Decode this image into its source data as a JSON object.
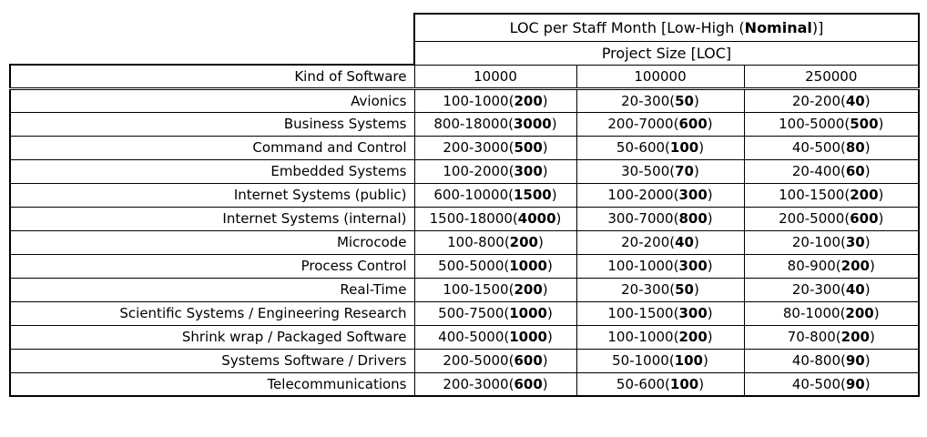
{
  "table": {
    "title": {
      "prefix": "LOC per Staff Month [Low-High (",
      "bold": "Nominal",
      "suffix": ")]"
    },
    "subtitle": "Project Size [LOC]",
    "row_header_label": "Kind of Software",
    "size_columns": [
      "10000",
      "100000",
      "250000"
    ],
    "cell_format": {
      "open": "(",
      "close": ")"
    },
    "rows": [
      {
        "kind": "Avionics",
        "cells": [
          {
            "range": "100-1000",
            "nominal": "200"
          },
          {
            "range": "20-300",
            "nominal": "50"
          },
          {
            "range": "20-200",
            "nominal": "40"
          }
        ]
      },
      {
        "kind": "Business Systems",
        "cells": [
          {
            "range": "800-18000",
            "nominal": "3000"
          },
          {
            "range": "200-7000",
            "nominal": "600"
          },
          {
            "range": "100-5000",
            "nominal": "500"
          }
        ]
      },
      {
        "kind": "Command and Control",
        "cells": [
          {
            "range": "200-3000",
            "nominal": "500"
          },
          {
            "range": "50-600",
            "nominal": "100"
          },
          {
            "range": "40-500",
            "nominal": "80"
          }
        ]
      },
      {
        "kind": "Embedded Systems",
        "cells": [
          {
            "range": "100-2000",
            "nominal": "300"
          },
          {
            "range": "30-500",
            "nominal": "70"
          },
          {
            "range": "20-400",
            "nominal": "60"
          }
        ]
      },
      {
        "kind": "Internet Systems (public)",
        "cells": [
          {
            "range": "600-10000",
            "nominal": "1500"
          },
          {
            "range": "100-2000",
            "nominal": "300"
          },
          {
            "range": "100-1500",
            "nominal": "200"
          }
        ]
      },
      {
        "kind": "Internet Systems (internal)",
        "cells": [
          {
            "range": "1500-18000",
            "nominal": "4000"
          },
          {
            "range": "300-7000",
            "nominal": "800"
          },
          {
            "range": "200-5000",
            "nominal": "600"
          }
        ]
      },
      {
        "kind": "Microcode",
        "cells": [
          {
            "range": "100-800",
            "nominal": "200"
          },
          {
            "range": "20-200",
            "nominal": "40"
          },
          {
            "range": "20-100",
            "nominal": "30"
          }
        ]
      },
      {
        "kind": "Process Control",
        "cells": [
          {
            "range": "500-5000",
            "nominal": "1000"
          },
          {
            "range": "100-1000",
            "nominal": "300"
          },
          {
            "range": "80-900",
            "nominal": "200"
          }
        ]
      },
      {
        "kind": "Real-Time",
        "cells": [
          {
            "range": "100-1500",
            "nominal": "200"
          },
          {
            "range": "20-300",
            "nominal": "50"
          },
          {
            "range": "20-300",
            "nominal": "40"
          }
        ]
      },
      {
        "kind": "Scientific Systems / Engineering Research",
        "cells": [
          {
            "range": "500-7500",
            "nominal": "1000"
          },
          {
            "range": "100-1500",
            "nominal": "300"
          },
          {
            "range": "80-1000",
            "nominal": "200"
          }
        ]
      },
      {
        "kind": "Shrink wrap / Packaged Software",
        "cells": [
          {
            "range": "400-5000",
            "nominal": "1000"
          },
          {
            "range": "100-1000",
            "nominal": "200"
          },
          {
            "range": "70-800",
            "nominal": "200"
          }
        ]
      },
      {
        "kind": "Systems Software / Drivers",
        "cells": [
          {
            "range": "200-5000",
            "nominal": "600"
          },
          {
            "range": "50-1000",
            "nominal": "100"
          },
          {
            "range": "40-800",
            "nominal": "90"
          }
        ]
      },
      {
        "kind": "Telecommunications",
        "cells": [
          {
            "range": "200-3000",
            "nominal": "600"
          },
          {
            "range": "50-600",
            "nominal": "100"
          },
          {
            "range": "40-500",
            "nominal": "90"
          }
        ]
      }
    ]
  }
}
